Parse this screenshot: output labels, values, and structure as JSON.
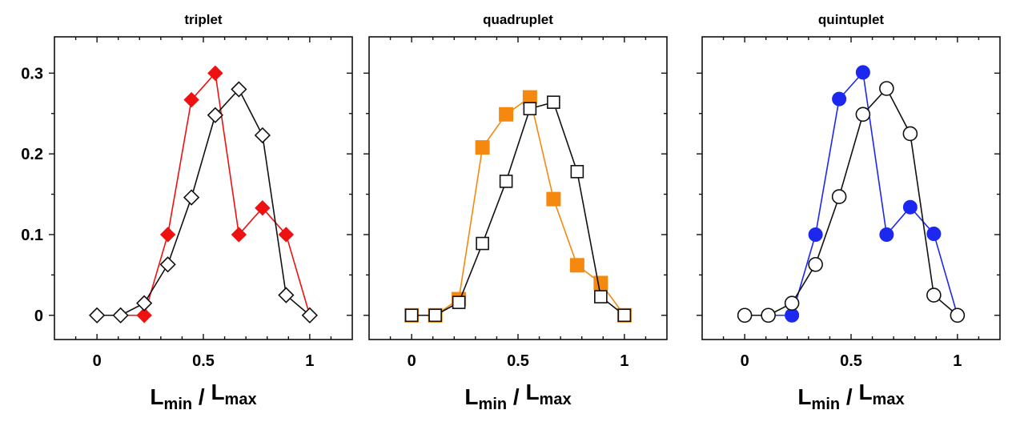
{
  "chart_data": [
    {
      "type": "line",
      "title": "triplet",
      "xlabel": {
        "main1": "L",
        "sub1": "min",
        "sep": " / ",
        "main2": "L",
        "sub2": "max"
      },
      "xlim": [
        -0.2,
        1.2
      ],
      "ylim": [
        -0.03,
        0.345
      ],
      "xticks": [
        0,
        0.5,
        1
      ],
      "xtick_labels": [
        "0",
        "0.5",
        "1"
      ],
      "yticks": [
        0,
        0.1,
        0.2,
        0.3
      ],
      "ytick_labels": [
        "0",
        "0.1",
        "0.2",
        "0.3"
      ],
      "show_y_tick_labels": true,
      "series": [
        {
          "marker": "diamond",
          "filled": true,
          "color": "#ee1111",
          "x": [
            0,
            0.111,
            0.222,
            0.333,
            0.444,
            0.556,
            0.667,
            0.778,
            0.889,
            1
          ],
          "y": [
            0,
            0,
            0,
            0.1,
            0.267,
            0.3,
            0.1,
            0.133,
            0.1,
            0
          ]
        },
        {
          "marker": "diamond",
          "filled": false,
          "color": "#111111",
          "x": [
            0,
            0.111,
            0.222,
            0.333,
            0.444,
            0.556,
            0.667,
            0.778,
            0.889,
            1
          ],
          "y": [
            0,
            0,
            0.015,
            0.063,
            0.146,
            0.248,
            0.28,
            0.223,
            0.025,
            0
          ]
        }
      ]
    },
    {
      "type": "line",
      "title": "quadruplet",
      "xlabel": {
        "main1": "L",
        "sub1": "min",
        "sep": " / ",
        "main2": "L",
        "sub2": "max"
      },
      "xlim": [
        -0.2,
        1.2
      ],
      "ylim": [
        -0.03,
        0.345
      ],
      "xticks": [
        0,
        0.5,
        1
      ],
      "xtick_labels": [
        "0",
        "0.5",
        "1"
      ],
      "yticks": [
        0,
        0.1,
        0.2,
        0.3
      ],
      "ytick_labels": [],
      "show_y_tick_labels": false,
      "series": [
        {
          "marker": "square",
          "filled": true,
          "color": "#f5890f",
          "x": [
            0,
            0.111,
            0.222,
            0.333,
            0.444,
            0.556,
            0.667,
            0.778,
            0.889,
            1
          ],
          "y": [
            0,
            0,
            0.02,
            0.208,
            0.249,
            0.27,
            0.144,
            0.062,
            0.04,
            0
          ]
        },
        {
          "marker": "square",
          "filled": false,
          "color": "#111111",
          "x": [
            0,
            0.111,
            0.222,
            0.333,
            0.444,
            0.556,
            0.667,
            0.778,
            0.889,
            1
          ],
          "y": [
            0,
            0,
            0.016,
            0.089,
            0.166,
            0.256,
            0.264,
            0.178,
            0.023,
            0
          ]
        }
      ]
    },
    {
      "type": "line",
      "title": "quintuplet",
      "xlabel": {
        "main1": "L",
        "sub1": "min",
        "sep": " / ",
        "main2": "L",
        "sub2": "max"
      },
      "xlim": [
        -0.2,
        1.2
      ],
      "ylim": [
        -0.03,
        0.345
      ],
      "xticks": [
        0,
        0.5,
        1
      ],
      "xtick_labels": [
        "0",
        "0.5",
        "1"
      ],
      "yticks": [
        0,
        0.1,
        0.2,
        0.3
      ],
      "ytick_labels": [],
      "show_y_tick_labels": false,
      "series": [
        {
          "marker": "circle",
          "filled": true,
          "color": "#1c28f0",
          "x": [
            0,
            0.111,
            0.222,
            0.333,
            0.444,
            0.556,
            0.667,
            0.778,
            0.889,
            1
          ],
          "y": [
            0,
            0,
            0,
            0.1,
            0.268,
            0.301,
            0.1,
            0.134,
            0.101,
            0
          ]
        },
        {
          "marker": "circle",
          "filled": false,
          "color": "#111111",
          "x": [
            0,
            0.111,
            0.222,
            0.333,
            0.444,
            0.556,
            0.667,
            0.778,
            0.889,
            1
          ],
          "y": [
            0,
            0,
            0.015,
            0.063,
            0.147,
            0.249,
            0.281,
            0.225,
            0.025,
            0
          ]
        }
      ]
    }
  ]
}
